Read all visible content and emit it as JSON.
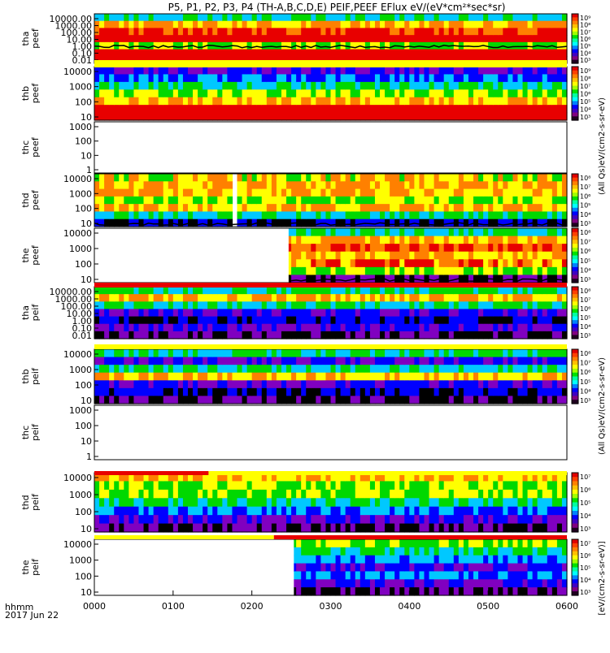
{
  "chart_data": {
    "type": "heatmap",
    "title": "P5, P1, P2, P3, P4 (TH-A,B,C,D,E) PEIF,PEEF EFlux eV/(eV*cm²*sec*sr)",
    "x_label": "hhmm",
    "date_label": "2017 Jun 22",
    "x_ticks": [
      "0000",
      "0100",
      "0200",
      "0300",
      "0400",
      "0500",
      "0600"
    ],
    "xlim": [
      "00:00",
      "06:00"
    ],
    "colorbar_labels": {
      "electron": "(All Qs)eV/(cm2-s-sr-eV)",
      "ion_right": "(All Qs)eV/(cm2-s-sr-eV)",
      "bottom": "[eV/(cm2-s-sr-eV)]"
    },
    "panels": [
      {
        "id": "tha-peef",
        "label_line1": "tha",
        "label_line2": "peef",
        "y_ticks": [
          "10000.00",
          "1000.00",
          "100.00",
          "10.00",
          "1.00",
          "0.10",
          "0.01"
        ],
        "scale": "log",
        "ylim": [
          0.01,
          30000
        ],
        "has_data": true,
        "coverage": [
          "00:00",
          "06:00"
        ],
        "colorbar": true,
        "colorbar_ticks": [
          "10⁹",
          "10⁸",
          "10⁷",
          "10⁶",
          "10⁵",
          "10⁴",
          "10³"
        ]
      },
      {
        "id": "thb-peef",
        "label_line1": "thb",
        "label_line2": "peef",
        "y_ticks": [
          "10000",
          "1000",
          "100",
          "10"
        ],
        "scale": "log",
        "ylim": [
          6,
          30000
        ],
        "has_data": true,
        "coverage": [
          "00:00",
          "06:00"
        ],
        "colorbar": true,
        "colorbar_ticks": [
          "10⁹",
          "10⁸",
          "10⁷",
          "10⁶",
          "10⁵",
          "10⁴",
          "10³"
        ]
      },
      {
        "id": "thc-peef",
        "label_line1": "thc",
        "label_line2": "peef",
        "y_ticks": [
          "1000",
          "100",
          "10",
          "1"
        ],
        "scale": "log",
        "ylim": [
          1,
          3000
        ],
        "has_data": false,
        "colorbar": false
      },
      {
        "id": "thd-peef",
        "label_line1": "thd",
        "label_line2": "peef",
        "y_ticks": [
          "10000",
          "1000",
          "100",
          "10"
        ],
        "scale": "log",
        "ylim": [
          6,
          30000
        ],
        "has_data": true,
        "coverage": [
          "00:00",
          "06:00"
        ],
        "gap": [
          "01:42",
          "01:52"
        ],
        "colorbar": true,
        "colorbar_ticks": [
          "10⁸",
          "10⁷",
          "10⁶",
          "10⁵",
          "10⁴",
          "10³"
        ]
      },
      {
        "id": "the-peef",
        "label_line1": "the",
        "label_line2": "peef",
        "y_ticks": [
          "10000",
          "1000",
          "100",
          "10"
        ],
        "scale": "log",
        "ylim": [
          6,
          30000
        ],
        "has_data": true,
        "coverage": [
          "02:28",
          "06:00"
        ],
        "colorbar": true,
        "colorbar_ticks": [
          "10⁸",
          "10⁷",
          "10⁶",
          "10⁵",
          "10⁴",
          "10³"
        ]
      },
      {
        "id": "tha-peif",
        "label_line1": "tha",
        "label_line2": "peif",
        "y_ticks": [
          "10000.00",
          "1000.00",
          "100.00",
          "10.00",
          "1.00",
          "0.10",
          "0.01"
        ],
        "scale": "log",
        "ylim": [
          0.01,
          30000
        ],
        "has_data": true,
        "coverage": [
          "00:00",
          "06:00"
        ],
        "colorbar": true,
        "colorbar_ticks": [
          "10⁸",
          "10⁷",
          "10⁶",
          "10⁵",
          "10⁴",
          "10³"
        ]
      },
      {
        "id": "thb-peif",
        "label_line1": "thb",
        "label_line2": "peif",
        "y_ticks": [
          "10000",
          "1000",
          "100",
          "10"
        ],
        "scale": "log",
        "ylim": [
          6,
          30000
        ],
        "has_data": true,
        "coverage": [
          "00:00",
          "06:00"
        ],
        "colorbar": true,
        "colorbar_ticks": [
          "10⁸",
          "10⁷",
          "10⁶",
          "10⁵",
          "10⁴",
          "10³"
        ]
      },
      {
        "id": "thc-peif",
        "label_line1": "thc",
        "label_line2": "peif",
        "y_ticks": [
          "1000",
          "100",
          "10",
          "1"
        ],
        "scale": "log",
        "ylim": [
          1,
          3000
        ],
        "has_data": false,
        "colorbar": false
      },
      {
        "id": "thd-peif",
        "label_line1": "thd",
        "label_line2": "peif",
        "y_ticks": [
          "10000",
          "1000",
          "100",
          "10"
        ],
        "scale": "log",
        "ylim": [
          6,
          30000
        ],
        "has_data": true,
        "coverage": [
          "00:00",
          "06:00"
        ],
        "colorbar": true,
        "colorbar_ticks": [
          "10⁷",
          "10⁶",
          "10⁵",
          "10⁴",
          "10³"
        ]
      },
      {
        "id": "the-peif",
        "label_line1": "the",
        "label_line2": "peif",
        "y_ticks": [
          "10000",
          "1000",
          "100",
          "10"
        ],
        "scale": "log",
        "ylim": [
          6,
          30000
        ],
        "has_data": true,
        "coverage": [
          "02:32",
          "06:00"
        ],
        "colorbar": true,
        "colorbar_ticks": [
          "10⁷",
          "10⁶",
          "10⁵",
          "10⁴",
          "10³"
        ]
      }
    ],
    "colors": {
      "red": "#e80000",
      "orange": "#ff8000",
      "yellow": "#ffff00",
      "green": "#00d800",
      "cyan": "#00c8ff",
      "blue": "#0000ff",
      "violet": "#8000c0",
      "black": "#000000",
      "white": "#ffffff"
    },
    "colorbar_palette": [
      "#e00000",
      "#ff4000",
      "#ff8000",
      "#ffc000",
      "#ffff00",
      "#a0ff00",
      "#00e000",
      "#00ffa0",
      "#00ffff",
      "#0080ff",
      "#0000ff",
      "#4000c0",
      "#800080",
      "#200020"
    ]
  }
}
